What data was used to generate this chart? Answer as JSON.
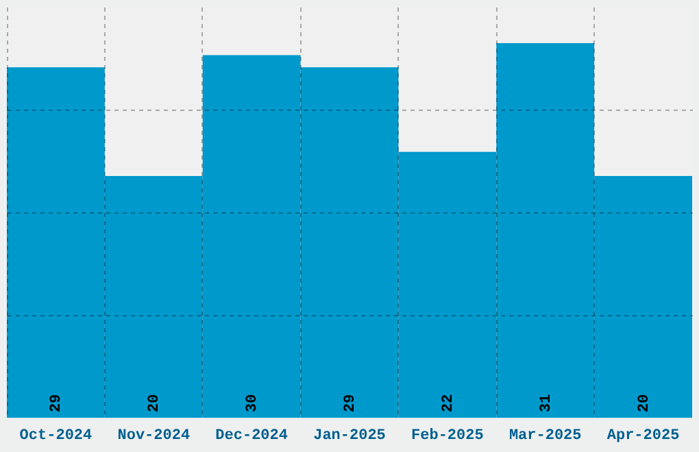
{
  "chart_data": {
    "type": "bar",
    "categories": [
      "Oct-2024",
      "Nov-2024",
      "Dec-2024",
      "Jan-2025",
      "Feb-2025",
      "Mar-2025",
      "Apr-2025"
    ],
    "values": [
      29,
      20,
      30,
      29,
      22,
      31,
      20
    ],
    "color": "#0099cc",
    "ylim": [
      0,
      34
    ],
    "yticks": [
      {
        "value": 8.5,
        "label": null
      },
      {
        "value": 17,
        "label": null
      },
      {
        "value": 25.5,
        "label": null
      }
    ],
    "tick_labels": "x",
    "grid": true,
    "data_labels": true
  }
}
